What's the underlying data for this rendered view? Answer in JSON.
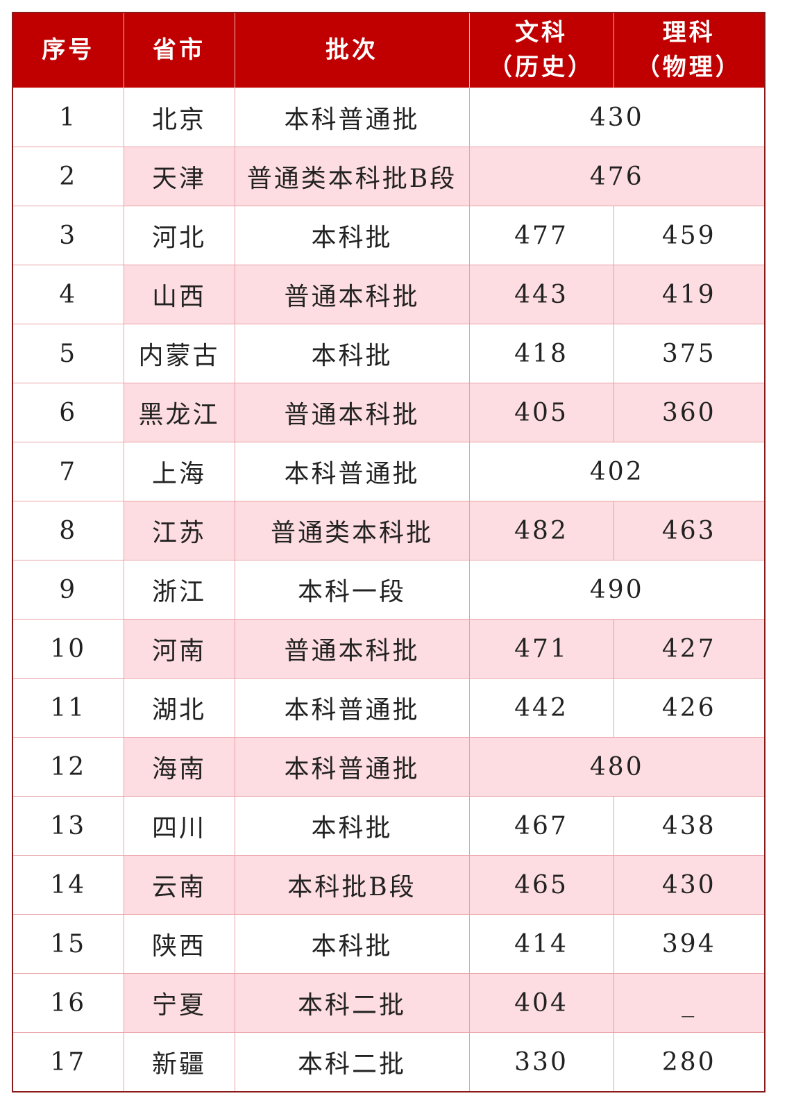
{
  "header": {
    "index": "序号",
    "province": "省市",
    "batch": "批次",
    "liberal_arts": "文科",
    "liberal_arts_sub": "（历史）",
    "science": "理科",
    "science_sub": "（物理）"
  },
  "colors": {
    "header_bg": "#c00000",
    "alt_row_bg": "#fddde1",
    "border": "#e8a0a6"
  },
  "rows": [
    {
      "index": "1",
      "province": "北京",
      "batch": "本科普通批",
      "combined": "430"
    },
    {
      "index": "2",
      "province": "天津",
      "batch": "普通类本科批B段",
      "combined": "476"
    },
    {
      "index": "3",
      "province": "河北",
      "batch": "本科批",
      "liberal": "477",
      "science": "459"
    },
    {
      "index": "4",
      "province": "山西",
      "batch": "普通本科批",
      "liberal": "443",
      "science": "419"
    },
    {
      "index": "5",
      "province": "内蒙古",
      "batch": "本科批",
      "liberal": "418",
      "science": "375"
    },
    {
      "index": "6",
      "province": "黑龙江",
      "batch": "普通本科批",
      "liberal": "405",
      "science": "360"
    },
    {
      "index": "7",
      "province": "上海",
      "batch": "本科普通批",
      "combined": "402"
    },
    {
      "index": "8",
      "province": "江苏",
      "batch": "普通类本科批",
      "liberal": "482",
      "science": "463"
    },
    {
      "index": "9",
      "province": "浙江",
      "batch": "本科一段",
      "combined": "490"
    },
    {
      "index": "10",
      "province": "河南",
      "batch": "普通本科批",
      "liberal": "471",
      "science": "427"
    },
    {
      "index": "11",
      "province": "湖北",
      "batch": "本科普通批",
      "liberal": "442",
      "science": "426"
    },
    {
      "index": "12",
      "province": "海南",
      "batch": "本科普通批",
      "combined": "480"
    },
    {
      "index": "13",
      "province": "四川",
      "batch": "本科批",
      "liberal": "467",
      "science": "438"
    },
    {
      "index": "14",
      "province": "云南",
      "batch": "本科批B段",
      "liberal": "465",
      "science": "430"
    },
    {
      "index": "15",
      "province": "陕西",
      "batch": "本科批",
      "liberal": "414",
      "science": "394"
    },
    {
      "index": "16",
      "province": "宁夏",
      "batch": "本科二批",
      "liberal": "404",
      "science": "_"
    },
    {
      "index": "17",
      "province": "新疆",
      "batch": "本科二批",
      "liberal": "330",
      "science": "280"
    }
  ]
}
